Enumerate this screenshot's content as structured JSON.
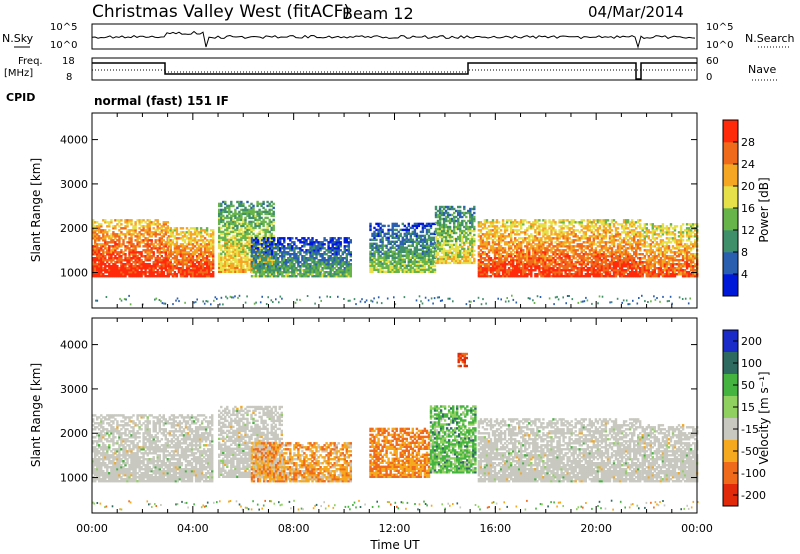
{
  "header": {
    "title": "Christmas Valley West (fitACF)",
    "beam": "Beam 12",
    "date": "04/Mar/2014"
  },
  "small_panels": {
    "nsky_label": "N.Sky",
    "nsearch_label": "N.Search",
    "noise_ticks": [
      "10^5",
      "10^0"
    ],
    "freq_label": "Freq.",
    "freq_unit": "[MHz]",
    "freq_ticks": [
      "18",
      "8"
    ],
    "nave_label": "Nave",
    "nave_ticks": [
      "60",
      "0"
    ],
    "cpid_label": "CPID",
    "cpid_text": "normal (fast) 151 IF"
  },
  "colors": {
    "power": [
      "#0018d8",
      "#2a5fb0",
      "#3f8f6a",
      "#67b54a",
      "#e6e14a",
      "#f5a623",
      "#f06a1c",
      "#ff2a0a"
    ],
    "velocity": [
      "#1a2bc8",
      "#2e6a60",
      "#45b33f",
      "#90d060",
      "#c8c8c0",
      "#f5a91f",
      "#f06a1c",
      "#e02a0a"
    ],
    "velocity_ground": "#c8c8c0"
  },
  "chart_data": [
    {
      "type": "heatmap",
      "name": "power",
      "ylabel": "Slant Range [km]",
      "yticks": [
        1000,
        2000,
        3000,
        4000
      ],
      "ylim": [
        200,
        4600
      ],
      "xlim": [
        0,
        24
      ],
      "colorbar_label": "Power [dB]",
      "colorbar_ticks": [
        4,
        8,
        12,
        16,
        20,
        24,
        28
      ],
      "colorbar_range": [
        0,
        32
      ],
      "regions": [
        {
          "x": [
            0.0,
            3.0
          ],
          "y": [
            900,
            2200
          ],
          "level": 26
        },
        {
          "x": [
            3.0,
            4.8
          ],
          "y": [
            900,
            2000
          ],
          "level": 24
        },
        {
          "x": [
            5.0,
            7.2
          ],
          "y": [
            1000,
            2600
          ],
          "level": 16
        },
        {
          "x": [
            6.3,
            10.3
          ],
          "y": [
            900,
            1800
          ],
          "level": 8
        },
        {
          "x": [
            11.0,
            13.6
          ],
          "y": [
            1000,
            2100
          ],
          "level": 10
        },
        {
          "x": [
            13.6,
            15.2
          ],
          "y": [
            1200,
            2500
          ],
          "level": 14
        },
        {
          "x": [
            15.3,
            21.7
          ],
          "y": [
            900,
            2200
          ],
          "level": 24
        },
        {
          "x": [
            21.8,
            24.0
          ],
          "y": [
            900,
            2100
          ],
          "level": 22
        }
      ]
    },
    {
      "type": "heatmap",
      "name": "velocity",
      "ylabel": "Slant Range [km]",
      "xlabel": "Time UT",
      "yticks": [
        1000,
        2000,
        3000,
        4000
      ],
      "ylim": [
        200,
        4600
      ],
      "xlim": [
        0,
        24
      ],
      "xticks": [
        "00:00",
        "04:00",
        "08:00",
        "12:00",
        "16:00",
        "20:00",
        "00:00"
      ],
      "colorbar_label": "Velocity [m s⁻¹]",
      "colorbar_ticks": [
        "200",
        "100",
        "50",
        "15",
        "-15",
        "-50",
        "-100",
        "-200"
      ],
      "regions": [
        {
          "x": [
            0.0,
            4.8
          ],
          "y": [
            900,
            2400
          ],
          "kind": "ground"
        },
        {
          "x": [
            5.0,
            7.5
          ],
          "y": [
            1000,
            2600
          ],
          "kind": "ground"
        },
        {
          "x": [
            6.3,
            10.3
          ],
          "y": [
            900,
            1800
          ],
          "value": -60
        },
        {
          "x": [
            11.0,
            13.4
          ],
          "y": [
            1000,
            2100
          ],
          "value": -80
        },
        {
          "x": [
            13.4,
            15.2
          ],
          "y": [
            1100,
            2600
          ],
          "value": 40
        },
        {
          "x": [
            14.5,
            14.9
          ],
          "y": [
            3500,
            3800
          ],
          "value": -150
        },
        {
          "x": [
            15.3,
            21.7
          ],
          "y": [
            900,
            2300
          ],
          "kind": "ground"
        },
        {
          "x": [
            21.8,
            24.0
          ],
          "y": [
            900,
            2200
          ],
          "kind": "ground"
        }
      ]
    }
  ]
}
